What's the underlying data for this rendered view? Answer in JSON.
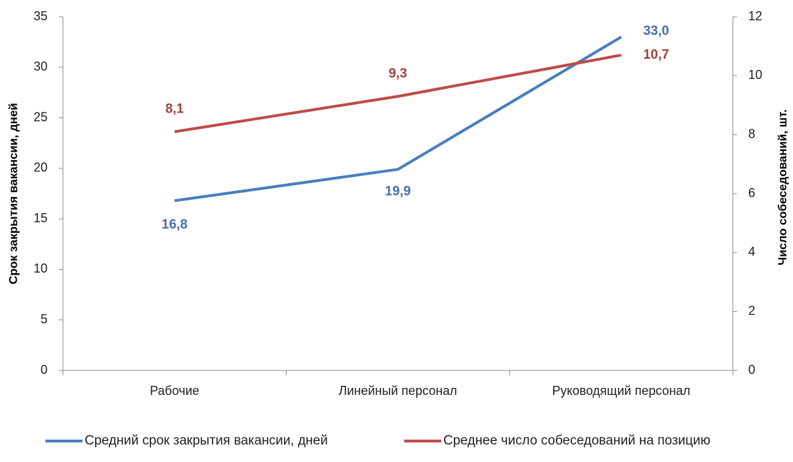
{
  "chart_data": {
    "type": "line",
    "categories": [
      "Рабочие",
      "Линейный персонал",
      "Руководящий персонал"
    ],
    "ylabel": "Срок закрытия вакансии, дней",
    "y2label": "Число собеседований, шт.",
    "ylim": [
      0,
      35
    ],
    "yticks": [
      0,
      5,
      10,
      15,
      20,
      25,
      30,
      35
    ],
    "y2lim": [
      0,
      12
    ],
    "y2ticks": [
      0,
      2,
      4,
      6,
      8,
      10,
      12
    ],
    "legend": "bottom",
    "series": [
      {
        "name": "Средний срок закрытия вакансии, дней",
        "color": "#4a7ebb",
        "label_color": "#4a6fa5",
        "values": [
          16.8,
          19.9,
          33.0
        ],
        "value_labels": [
          "16,8",
          "19,9",
          "33,0"
        ]
      },
      {
        "name": "Среднее число собеседований на позицию",
        "color": "#be4b48",
        "label_color": "#a0413e",
        "axis": "y2",
        "values": [
          8.1,
          9.3,
          10.7
        ],
        "value_labels": [
          "8,1",
          "9,3",
          "10,7"
        ]
      }
    ]
  }
}
